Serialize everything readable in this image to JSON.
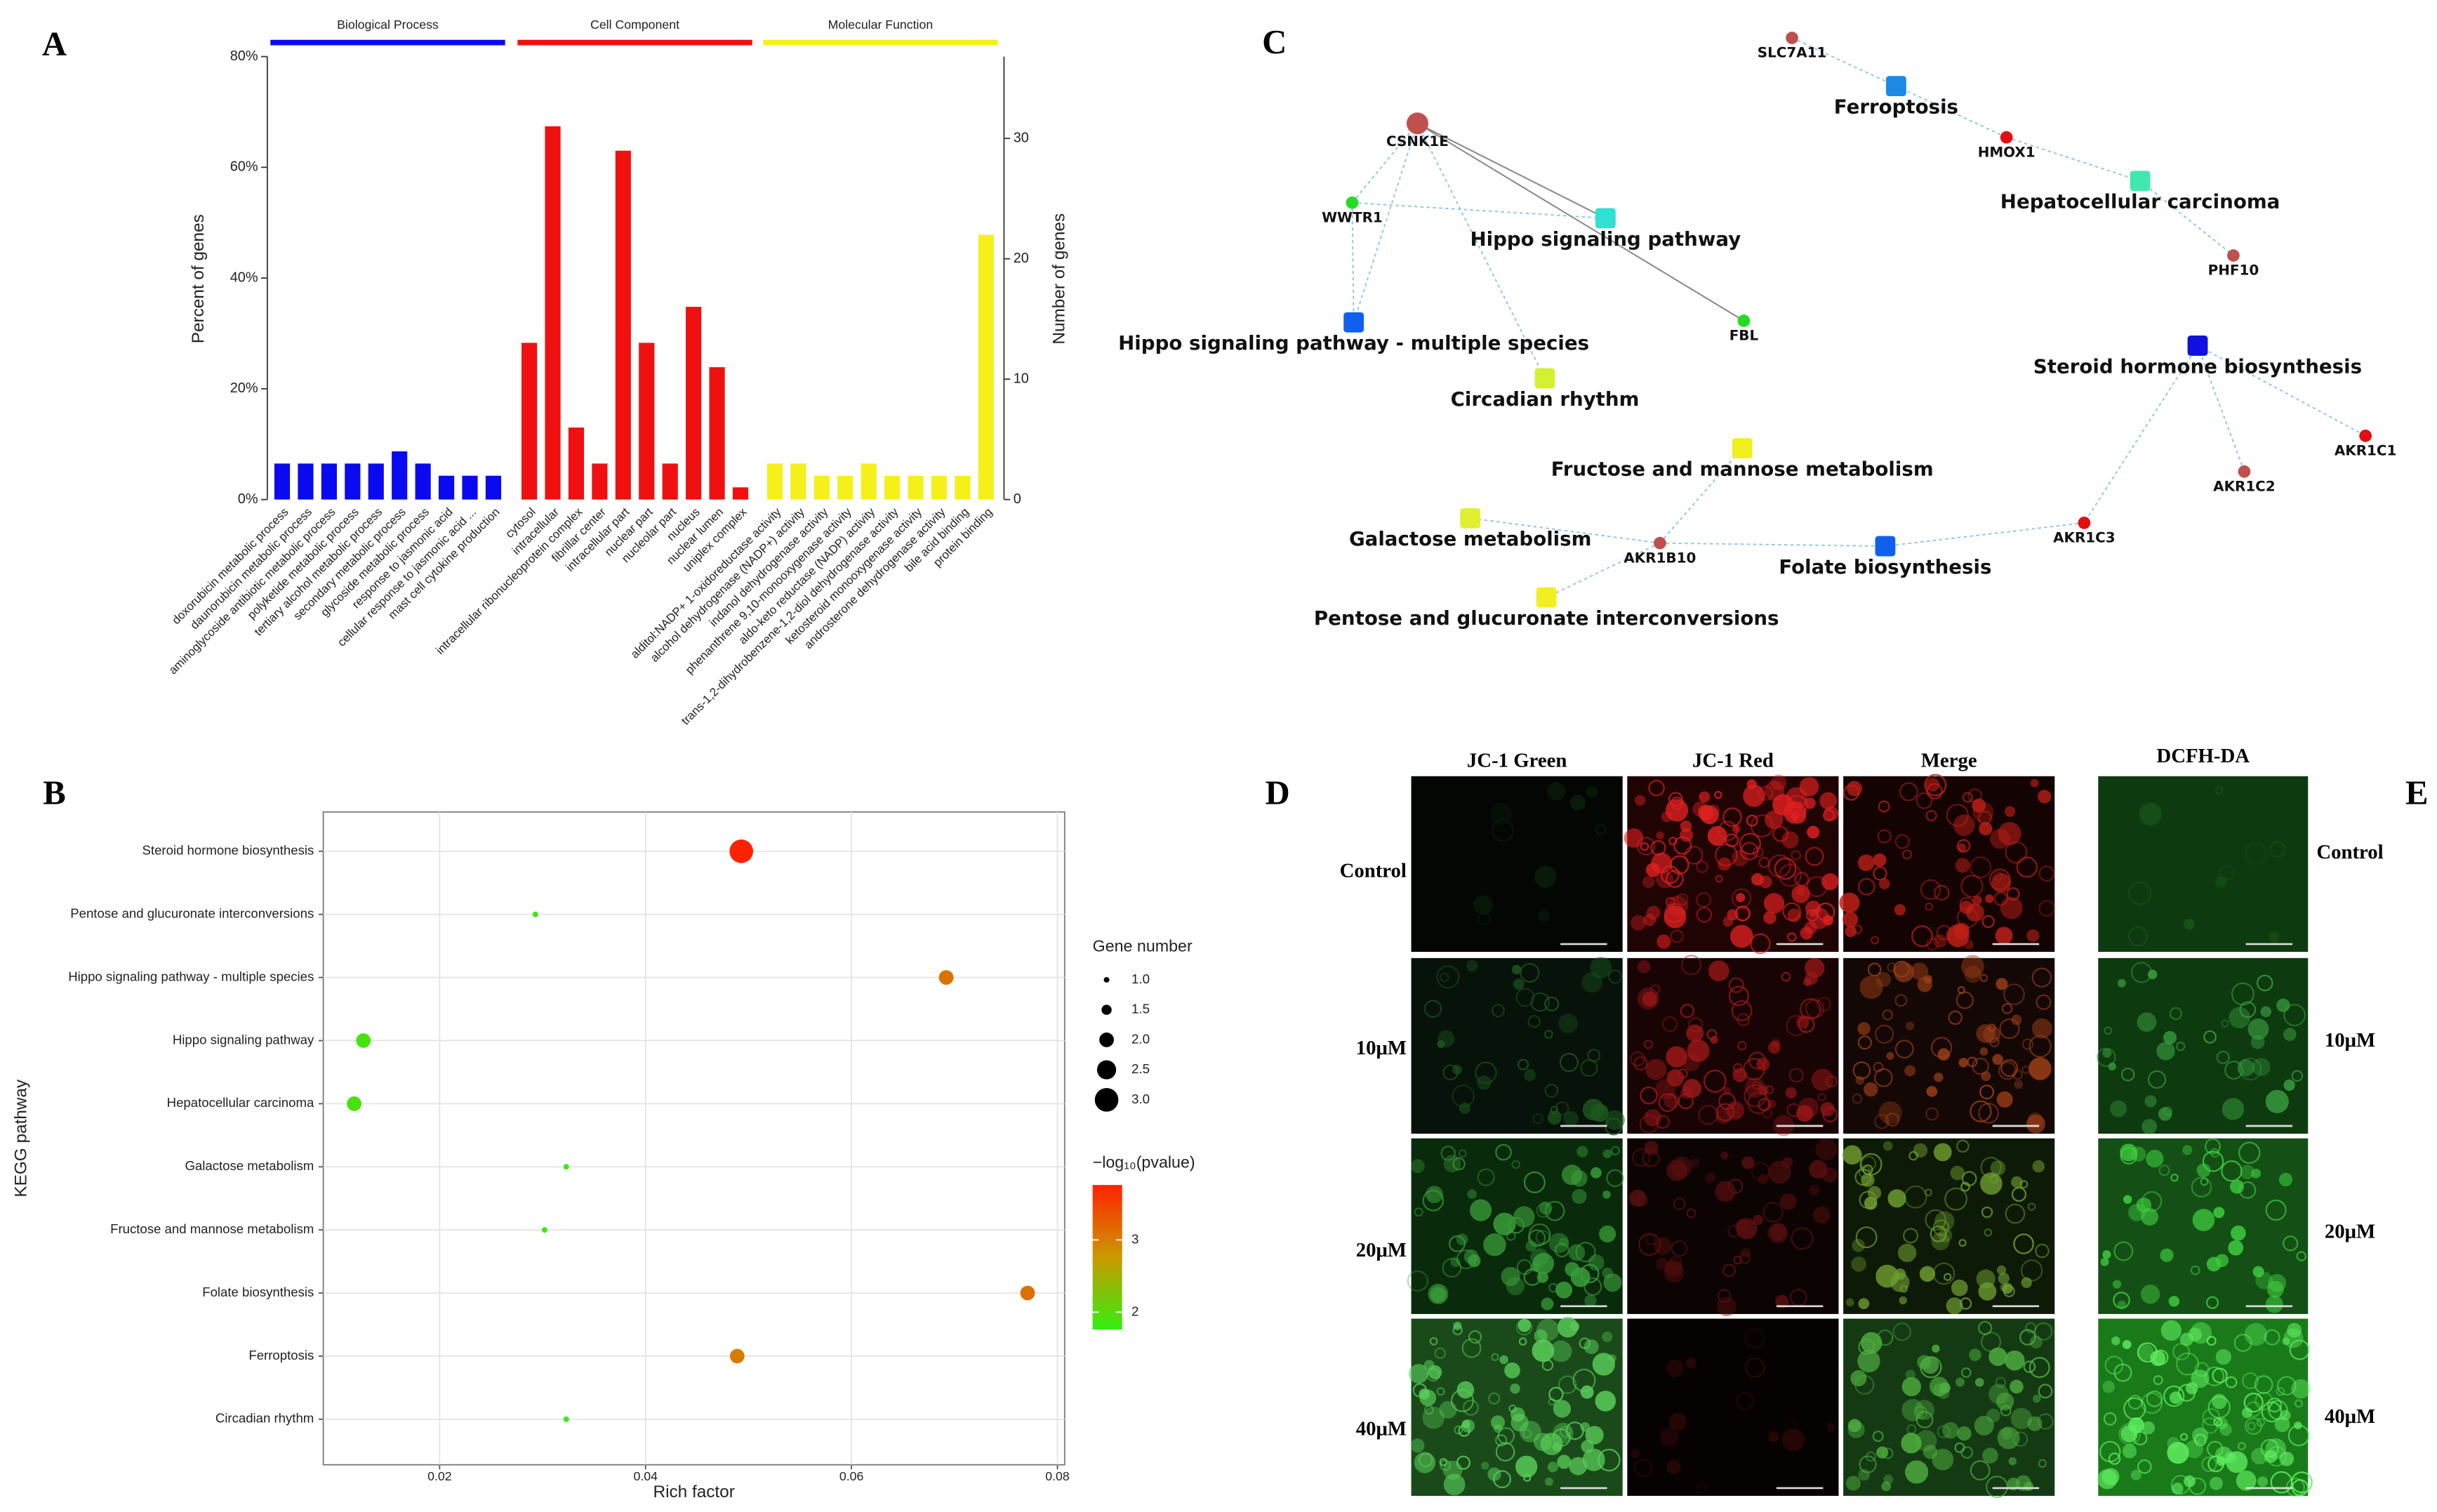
{
  "panel_labels": [
    "A",
    "B",
    "C",
    "D",
    "E"
  ],
  "chart_data": [
    {
      "type": "bar",
      "ylabel": "Percent of genes",
      "y2label": "Number of genes",
      "ylim": [
        0,
        80
      ],
      "yticks": [
        {
          "value": 0,
          "label": "0%"
        },
        {
          "value": 20,
          "label": "20%"
        },
        {
          "value": 40,
          "label": "40%"
        },
        {
          "value": 60,
          "label": "60%"
        },
        {
          "value": 80,
          "label": "80%"
        }
      ],
      "y2lim": [
        0,
        36.8
      ],
      "y2ticks": [
        0,
        10,
        20,
        30
      ],
      "series": [
        {
          "name": "Biological Process",
          "color": "#0a0af0",
          "categories": [
            "doxorubicin metabolic process",
            "daunorubicin metabolic process",
            "aminoglycoside antibiotic metabolic process",
            "polyketide metabolic process",
            "tertiary alcohol metabolic process",
            "secondary metabolic process",
            "glycoside metabolic process",
            "response to jasmonic acid",
            "cellular response to jasmonic acid ...",
            "mast cell cytokine production"
          ],
          "values": [
            6.5,
            6.5,
            6.5,
            6.5,
            6.5,
            8.7,
            6.5,
            4.3,
            4.3,
            4.3
          ]
        },
        {
          "name": "Cell Component",
          "color": "#f01010",
          "categories": [
            "cytosol",
            "intracellular",
            "intracellular ribonucleoprotein complex",
            "fibrillar center",
            "intracellular part",
            "nuclear part",
            "nucleolar part",
            "nucleus",
            "nuclear lumen",
            "uniplex complex"
          ],
          "values": [
            28.3,
            67.4,
            13,
            6.5,
            63,
            28.3,
            6.5,
            34.8,
            23.9,
            2.2
          ]
        },
        {
          "name": "Molecular Function",
          "color": "#f5f01a",
          "categories": [
            "alditol:NADP+ 1-oxidoreductase activity",
            "alcohol dehydrogenase (NADP+) activity",
            "indanol dehydrogenase activity",
            "phenanthrene 9,10-monooxygenase activity",
            "aldo-keto reductase (NADP) activity",
            "trans-1,2-dihydrobenzene-1,2-diol dehydrogenase activity",
            "ketosteroid monooxygenase activity",
            "androsterone dehydrogenase activity",
            "bile acid binding",
            "protein binding"
          ],
          "values": [
            6.5,
            6.5,
            4.3,
            4.3,
            6.5,
            4.3,
            4.3,
            4.3,
            4.3,
            47.8
          ]
        }
      ]
    },
    {
      "type": "scatter",
      "xlabel": "Rich factor",
      "ylabel": "KEGG pathway",
      "grid": true,
      "categories": [
        "Steroid hormone biosynthesis",
        "Pentose and glucuronate interconversions",
        "Hippo signaling pathway - multiple species",
        "Hippo signaling pathway",
        "Hepatocellular carcinoma",
        "Galactose metabolism",
        "Fructose and mannose metabolism",
        "Folate biosynthesis",
        "Ferroptosis",
        "Circadian rhythm"
      ],
      "x": [
        0.0493,
        0.0293,
        0.0692,
        0.0126,
        0.0117,
        0.0323,
        0.0302,
        0.0771,
        0.0489,
        0.0323
      ],
      "sizes": [
        3,
        1,
        2,
        2,
        2,
        1,
        1,
        2,
        2,
        1
      ],
      "pvalues": [
        3.76,
        1.8,
        3.1,
        1.9,
        1.9,
        1.8,
        1.8,
        3.1,
        3.0,
        1.8
      ],
      "xlim": [
        0.0087,
        0.0807
      ],
      "xticks": [
        0.02,
        0.04,
        0.06,
        0.08
      ],
      "size_title": "Gene number",
      "size_ticks": [
        {
          "value": 1,
          "label": "1.0"
        },
        {
          "value": 1.5,
          "label": "1.5"
        },
        {
          "value": 2,
          "label": "2.0"
        },
        {
          "value": 2.5,
          "label": "2.5"
        },
        {
          "value": 3,
          "label": "3.0"
        }
      ],
      "color_title": "−log₁₀(pvalue)",
      "colorlim": [
        1.76,
        3.76
      ],
      "color_ticks": [
        2,
        3
      ],
      "colors": [
        "#33ee11",
        "#cc9900",
        "#ff2200"
      ]
    }
  ],
  "network": {
    "nodes": [
      {
        "label": "SLC7A11",
        "kind": "gene",
        "color": "#c0504d"
      },
      {
        "label": "Ferroptosis",
        "kind": "pathway",
        "color": "#1e88e5"
      },
      {
        "label": "HMOX1",
        "kind": "gene",
        "color": "#e01010"
      },
      {
        "label": "Hepatocellular carcinoma",
        "kind": "pathway",
        "color": "#40e8b0"
      },
      {
        "label": "PHF10",
        "kind": "gene",
        "color": "#c0504d"
      },
      {
        "label": "CSNK1E",
        "kind": "gene",
        "color": "#c0504d"
      },
      {
        "label": "WWTR1",
        "kind": "gene",
        "color": "#22dd22"
      },
      {
        "label": "Hippo signaling pathway",
        "kind": "pathway",
        "color": "#30e0d0"
      },
      {
        "label": "FBL",
        "kind": "gene",
        "color": "#22dd22"
      },
      {
        "label": "Hippo signaling pathway - multiple species",
        "kind": "pathway",
        "color": "#1060f0"
      },
      {
        "label": "Circadian rhythm",
        "kind": "pathway",
        "color": "#d4f030"
      },
      {
        "label": "Steroid hormone biosynthesis",
        "kind": "pathway",
        "color": "#1010e0"
      },
      {
        "label": "AKR1C1",
        "kind": "gene",
        "color": "#e01010"
      },
      {
        "label": "AKR1C2",
        "kind": "gene",
        "color": "#c0504d"
      },
      {
        "label": "AKR1C3",
        "kind": "gene",
        "color": "#e01010"
      },
      {
        "label": "Fructose and mannose metabolism",
        "kind": "pathway",
        "color": "#f0f020"
      },
      {
        "label": "Galactose metabolism",
        "kind": "pathway",
        "color": "#e0f030"
      },
      {
        "label": "AKR1B10",
        "kind": "gene",
        "color": "#c0504d"
      },
      {
        "label": "Folate biosynthesis",
        "kind": "pathway",
        "color": "#1060f0"
      },
      {
        "label": "Pentose and glucuronate interconversions",
        "kind": "pathway",
        "color": "#f0f020"
      }
    ],
    "edges": [
      [
        0,
        1
      ],
      [
        1,
        2
      ],
      [
        2,
        3
      ],
      [
        3,
        4
      ],
      [
        5,
        6
      ],
      [
        5,
        9
      ],
      [
        5,
        10
      ],
      [
        6,
        7
      ],
      [
        6,
        9
      ],
      [
        11,
        12
      ],
      [
        11,
        13
      ],
      [
        11,
        14
      ],
      [
        14,
        18
      ],
      [
        17,
        18
      ],
      [
        17,
        15
      ],
      [
        17,
        16
      ],
      [
        17,
        19
      ]
    ],
    "strong_edges": [
      [
        5,
        7
      ],
      [
        5,
        8
      ]
    ]
  },
  "micrographs": {
    "D": {
      "columns": [
        "JC-1 Green",
        "JC-1 Red",
        "Merge"
      ],
      "rows": [
        "Control",
        "10μM",
        "20μM",
        "40μM"
      ]
    },
    "E": {
      "columns": [
        "DCFH-DA"
      ],
      "rows": [
        "Control",
        "10μM",
        "20μM",
        "40μM"
      ]
    }
  }
}
